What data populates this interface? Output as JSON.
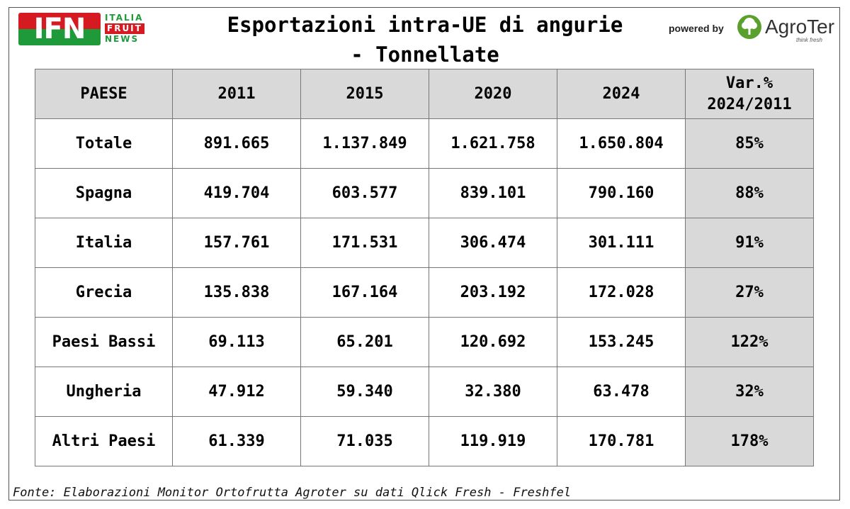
{
  "logo": {
    "mark": "IFN",
    "line1": "ITALIA",
    "line2": "FRUIT",
    "line3": "NEWS"
  },
  "title": {
    "line1": "Esportazioni intra-UE di angurie",
    "line2": "- Tonnellate"
  },
  "branding": {
    "powered_by": "powered by",
    "brand": "AgroTer",
    "tagline": "think fresh",
    "brand_color": "#5aa02c"
  },
  "table": {
    "headers": [
      "PAESE",
      "2011",
      "2015",
      "2020",
      "2024",
      "Var.%\n2024/2011"
    ],
    "rows": [
      {
        "paese": "Totale",
        "y2011": "891.665",
        "y2015": "1.137.849",
        "y2020": "1.621.758",
        "y2024": "1.650.804",
        "var": "85%"
      },
      {
        "paese": "Spagna",
        "y2011": "419.704",
        "y2015": "603.577",
        "y2020": "839.101",
        "y2024": "790.160",
        "var": "88%"
      },
      {
        "paese": "Italia",
        "y2011": "157.761",
        "y2015": "171.531",
        "y2020": "306.474",
        "y2024": "301.111",
        "var": "91%"
      },
      {
        "paese": "Grecia",
        "y2011": "135.838",
        "y2015": "167.164",
        "y2020": "203.192",
        "y2024": "172.028",
        "var": "27%"
      },
      {
        "paese": "Paesi Bassi",
        "y2011": "69.113",
        "y2015": "65.201",
        "y2020": "120.692",
        "y2024": "153.245",
        "var": "122%"
      },
      {
        "paese": "Ungheria",
        "y2011": "47.912",
        "y2015": "59.340",
        "y2020": "32.380",
        "y2024": "63.478",
        "var": "32%"
      },
      {
        "paese": "Altri Paesi",
        "y2011": "61.339",
        "y2015": "71.035",
        "y2020": "119.919",
        "y2024": "170.781",
        "var": "178%"
      }
    ]
  },
  "source": "Fonte: Elaborazioni Monitor Ortofrutta Agroter su dati Qlick Fresh - Freshfel",
  "colors": {
    "header_bg": "#d9d9d9",
    "ifn_red": "#d51a22",
    "ifn_green": "#1f9a3a"
  }
}
